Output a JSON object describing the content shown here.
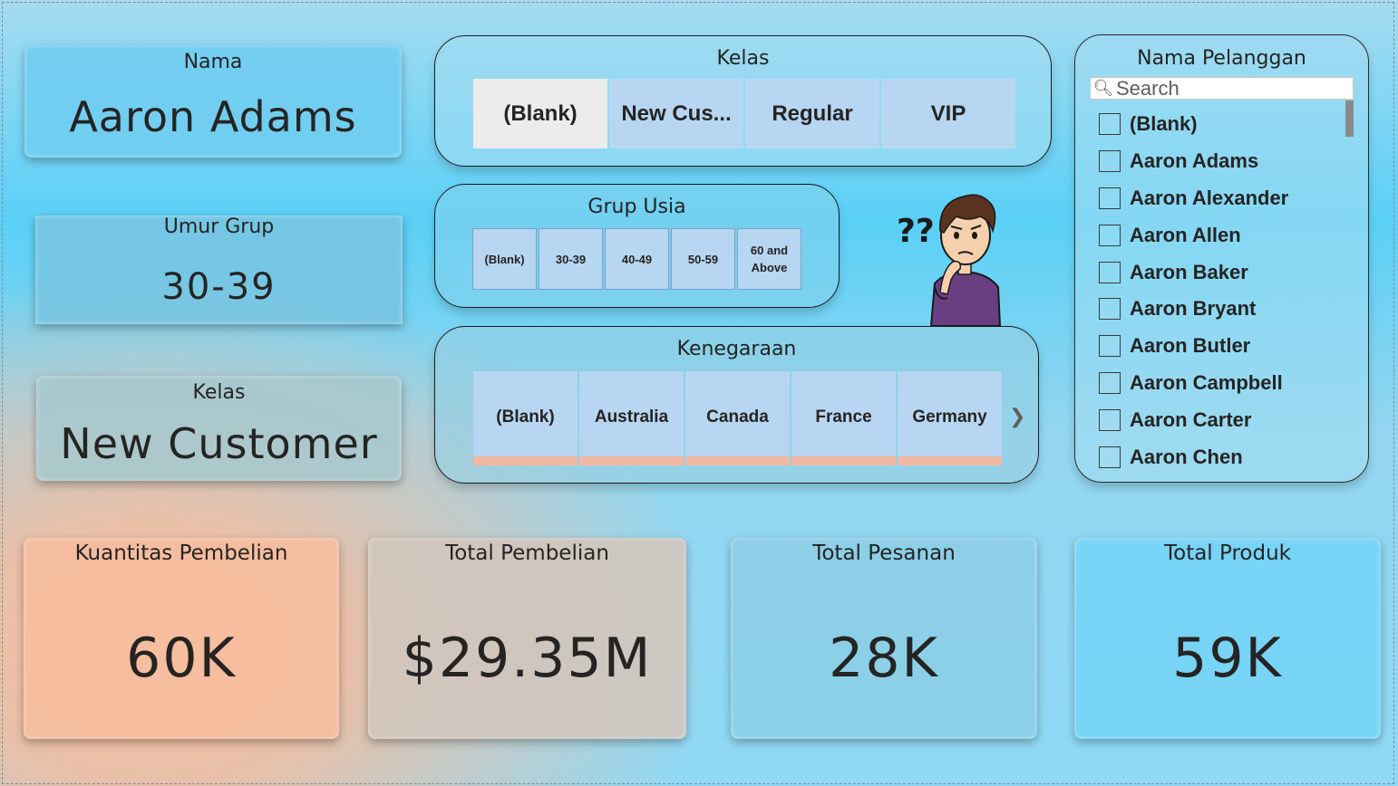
{
  "info": {
    "nama": {
      "title": "Nama",
      "value": "Aaron Adams"
    },
    "umur_grup": {
      "title": "Umur Grup",
      "value": "30-39"
    },
    "kelas": {
      "title": "Kelas",
      "value": "New Customer"
    }
  },
  "slicers": {
    "kelas": {
      "title": "Kelas",
      "options": [
        "(Blank)",
        "New Cus...",
        "Regular",
        "VIP"
      ],
      "selected": "(Blank)"
    },
    "grup_usia": {
      "title": "Grup Usia",
      "options": [
        "(Blank)",
        "30-39",
        "40-49",
        "50-59",
        "60 and Above"
      ]
    },
    "kenegaraan": {
      "title": "Kenegaraan",
      "options": [
        "(Blank)",
        "Australia",
        "Canada",
        "France",
        "Germany"
      ],
      "next_icon": "chevron-right-icon"
    }
  },
  "nama_pelanggan": {
    "title": "Nama Pelanggan",
    "search_placeholder": "Search",
    "items": [
      "(Blank)",
      "Aaron Adams",
      "Aaron Alexander",
      "Aaron Allen",
      "Aaron Baker",
      "Aaron Bryant",
      "Aaron Butler",
      "Aaron Campbell",
      "Aaron Carter",
      "Aaron Chen"
    ]
  },
  "kpis": [
    {
      "title": "Kuantitas Pembelian",
      "value": "60K"
    },
    {
      "title": "Total Pembelian",
      "value": "$29.35M"
    },
    {
      "title": "Total Pesanan",
      "value": "28K"
    },
    {
      "title": "Total Produk",
      "value": "59K"
    }
  ],
  "illustration": {
    "icon": "confused-person-icon",
    "marks": "??"
  }
}
